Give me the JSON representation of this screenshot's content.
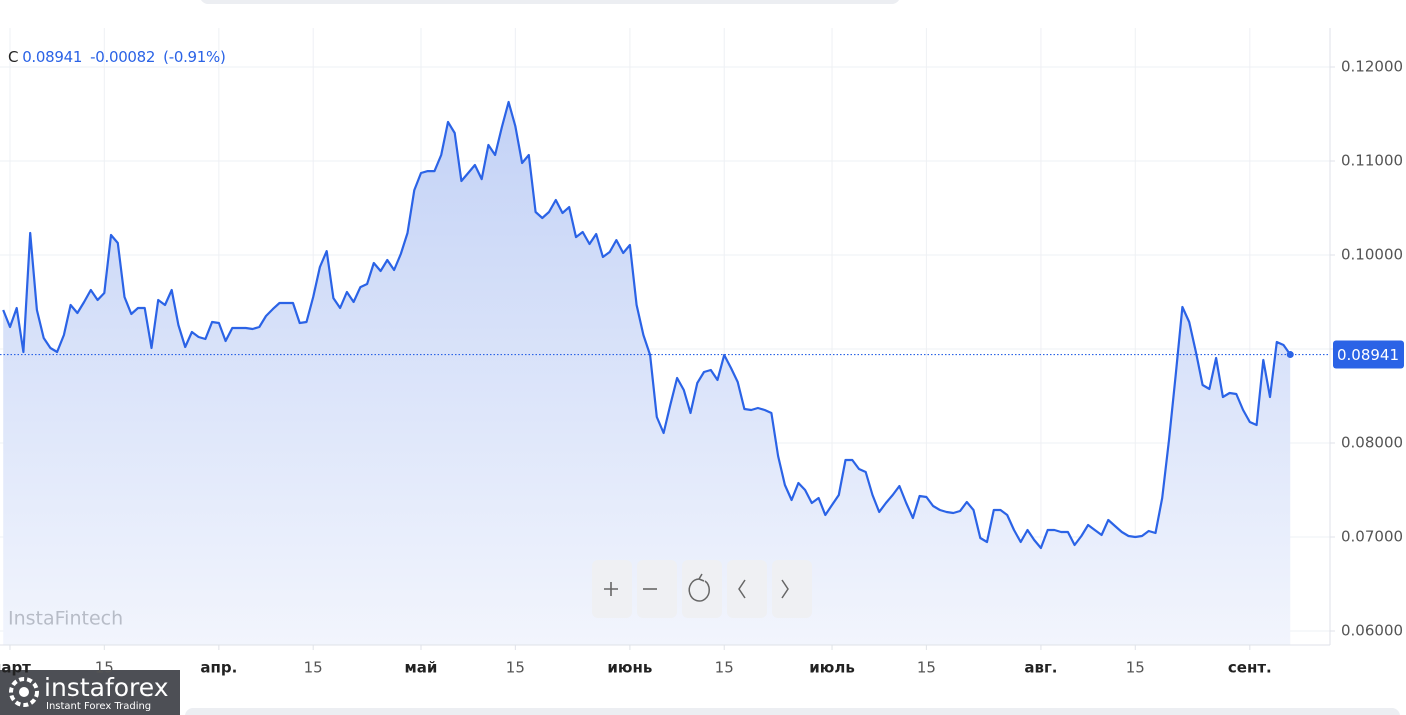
{
  "chart_data": {
    "type": "area",
    "color": "#2b63e6",
    "grid": true,
    "last": {
      "label": "C",
      "value": 0.08941,
      "change": -0.00082,
      "change_pct": {
        "value": -0.91,
        "label": "(-0.91%)"
      }
    },
    "xlim": [
      -1.48,
      195.9
    ],
    "xticks": [
      {
        "value": 0,
        "label": "март"
      },
      {
        "value": 14,
        "label": "15"
      },
      {
        "value": 31,
        "label": "апр."
      },
      {
        "value": 45,
        "label": "15"
      },
      {
        "value": 61,
        "label": "май"
      },
      {
        "value": 75,
        "label": "15"
      },
      {
        "value": 92,
        "label": "июнь"
      },
      {
        "value": 106,
        "label": "15"
      },
      {
        "value": 122,
        "label": "июль"
      },
      {
        "value": 136,
        "label": "15"
      },
      {
        "value": 153,
        "label": "авг."
      },
      {
        "value": 167,
        "label": "15"
      },
      {
        "value": 184,
        "label": "сент."
      }
    ],
    "ylim": [
      0.05851,
      0.12415
    ],
    "yticks": [
      {
        "value": 0.06,
        "label": "0.06000"
      },
      {
        "value": 0.07,
        "label": "0.07000"
      },
      {
        "value": 0.08,
        "label": "0.08000"
      },
      {
        "value": 0.09,
        "label": "0.09000"
      },
      {
        "value": 0.1,
        "label": "0.10000"
      },
      {
        "value": 0.11,
        "label": "0.11000"
      },
      {
        "value": 0.12,
        "label": "0.12000"
      }
    ],
    "x": [
      -1,
      0,
      1,
      2,
      3,
      4,
      5,
      6,
      7,
      8,
      9,
      10,
      11,
      12,
      13,
      14,
      15,
      16,
      17,
      18,
      19,
      20,
      21,
      22,
      23,
      24,
      25,
      26,
      27,
      28,
      29,
      30,
      31,
      32,
      33,
      34,
      35,
      36,
      37,
      38,
      39,
      40,
      41,
      42,
      43,
      44,
      45,
      46,
      47,
      48,
      49,
      50,
      51,
      52,
      53,
      54,
      55,
      56,
      57,
      58,
      59,
      60,
      61,
      62,
      63,
      64,
      65,
      66,
      67,
      68,
      69,
      70,
      71,
      72,
      73,
      74,
      75,
      76,
      77,
      78,
      79,
      80,
      81,
      82,
      83,
      84,
      85,
      86,
      87,
      88,
      89,
      90,
      91,
      92,
      93,
      94,
      95,
      96,
      97,
      98,
      99,
      100,
      101,
      102,
      103,
      104,
      105,
      106,
      107,
      108,
      109,
      110,
      111,
      112,
      113,
      114,
      115,
      116,
      117,
      118,
      119,
      120,
      121,
      122,
      123,
      124,
      125,
      126,
      127,
      128,
      129,
      130,
      131,
      132,
      133,
      134,
      135,
      136,
      137,
      138,
      139,
      140,
      141,
      142,
      143,
      144,
      145,
      146,
      147,
      148,
      149,
      150,
      151,
      152,
      153,
      154,
      155,
      156,
      157,
      158,
      159,
      160,
      161,
      162,
      163,
      164,
      165,
      166,
      167,
      168,
      169,
      170,
      171,
      172,
      173,
      174,
      175,
      176,
      177,
      178,
      179,
      180,
      181,
      182,
      183,
      184,
      185,
      186,
      187,
      188,
      189,
      190
    ],
    "values": [
      0.09415,
      0.09234,
      0.09436,
      0.08968,
      0.10234,
      0.09415,
      0.09117,
      0.09011,
      0.08968,
      0.09149,
      0.09468,
      0.09383,
      0.095,
      0.09628,
      0.09521,
      0.09596,
      0.10213,
      0.10128,
      0.09553,
      0.09372,
      0.09436,
      0.09436,
      0.09011,
      0.09521,
      0.09468,
      0.09628,
      0.09255,
      0.09021,
      0.09181,
      0.09128,
      0.09106,
      0.09287,
      0.09277,
      0.09085,
      0.09223,
      0.09223,
      0.09223,
      0.09213,
      0.09234,
      0.09351,
      0.09425,
      0.09489,
      0.09489,
      0.09489,
      0.09277,
      0.09287,
      0.09553,
      0.09872,
      0.10042,
      0.09542,
      0.09436,
      0.09606,
      0.095,
      0.09659,
      0.09691,
      0.09915,
      0.0983,
      0.09947,
      0.0984,
      0.10011,
      0.10234,
      0.10691,
      0.10872,
      0.10893,
      0.10893,
      0.11064,
      0.11415,
      0.11298,
      0.10787,
      0.10872,
      0.10957,
      0.10808,
      0.1117,
      0.11064,
      0.11362,
      0.11628,
      0.11372,
      0.10979,
      0.11064,
      0.10457,
      0.10394,
      0.10457,
      0.10585,
      0.10447,
      0.1051,
      0.10191,
      0.10245,
      0.10117,
      0.10223,
      0.09979,
      0.10032,
      0.10159,
      0.10021,
      0.10106,
      0.09468,
      0.09149,
      0.08936,
      0.08277,
      0.08106,
      0.08404,
      0.08691,
      0.08564,
      0.08319,
      0.08638,
      0.08755,
      0.08777,
      0.0867,
      0.08936,
      0.08798,
      0.08649,
      0.08362,
      0.08351,
      0.08372,
      0.08351,
      0.08319,
      0.07862,
      0.07553,
      0.07394,
      0.07574,
      0.075,
      0.07362,
      0.07415,
      0.07234,
      0.0734,
      0.07447,
      0.07819,
      0.07819,
      0.07723,
      0.07691,
      0.07447,
      0.07266,
      0.07362,
      0.07447,
      0.07543,
      0.07362,
      0.07202,
      0.07436,
      0.07426,
      0.0733,
      0.07287,
      0.07266,
      0.07255,
      0.07277,
      0.07372,
      0.07287,
      0.06989,
      0.06947,
      0.07287,
      0.07287,
      0.07234,
      0.07074,
      0.06947,
      0.07074,
      0.06968,
      0.06883,
      0.07074,
      0.07074,
      0.07053,
      0.07053,
      0.06915,
      0.07011,
      0.07128,
      0.07074,
      0.07021,
      0.07181,
      0.07117,
      0.07053,
      0.07011,
      0.07,
      0.07011,
      0.07064,
      0.07043,
      0.07415,
      0.08032,
      0.08723,
      0.09447,
      0.09287,
      0.08968,
      0.08617,
      0.08574,
      0.08904,
      0.08489,
      0.08532,
      0.08521,
      0.08351,
      0.08223,
      0.08191,
      0.08883,
      0.08489,
      0.09074,
      0.09043,
      0.08941
    ]
  },
  "branding": {
    "watermark": "InstaFintech",
    "logo": "instaforex",
    "tagline": "Instant Forex Trading"
  }
}
